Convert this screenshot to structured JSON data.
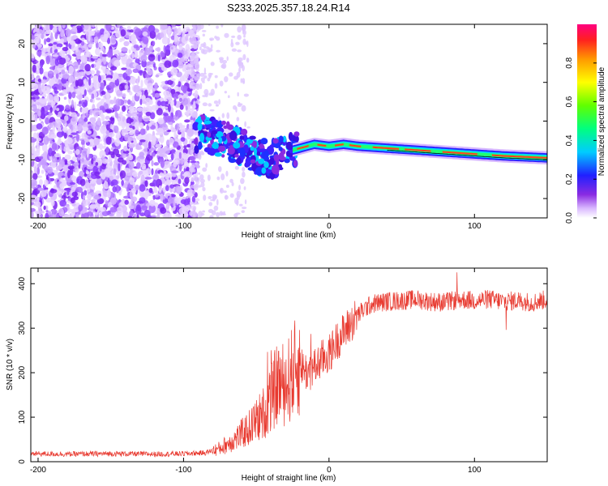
{
  "figure": {
    "title": "S233.2025.357.18.24.R14"
  },
  "chart_data": [
    {
      "type": "heatmap",
      "title": "",
      "xlabel": "Height of straight line (km)",
      "ylabel": "Frequency (Hz)",
      "xlim": [
        -205,
        150
      ],
      "ylim": [
        -25,
        25
      ],
      "xticks": [
        -200,
        -100,
        0,
        100
      ],
      "yticks": [
        -20,
        -10,
        0,
        10,
        20
      ],
      "colorbar": {
        "label": "Normalized spectral amplitude",
        "range": [
          0.0,
          1.0
        ],
        "ticks": [
          0.0,
          0.2,
          0.4,
          0.6,
          0.8
        ]
      },
      "ridge_trace": {
        "description_x_km": [
          -90,
          -80,
          -70,
          -60,
          -50,
          -40,
          -30,
          -20,
          -10,
          0,
          10,
          20,
          40,
          60,
          80,
          100,
          120,
          150
        ],
        "frequency_hz": [
          -3,
          -4,
          -5,
          -7,
          -9,
          -10,
          -8,
          -7,
          -6,
          -6.5,
          -6,
          -6.5,
          -7,
          -7.5,
          -8,
          -8.5,
          -9,
          -9.5
        ]
      }
    },
    {
      "type": "line",
      "title": "",
      "xlabel": "Height of straight line (km)",
      "ylabel": "SNR (10 * v/v)",
      "xlim": [
        -205,
        150
      ],
      "ylim": [
        0,
        435
      ],
      "xticks": [
        -200,
        -100,
        0,
        100
      ],
      "yticks": [
        0,
        100,
        200,
        300,
        400
      ],
      "series": [
        {
          "name": "SNR",
          "color": "#e83a30",
          "x": [
            -205,
            -180,
            -150,
            -120,
            -100,
            -85,
            -75,
            -65,
            -55,
            -45,
            -40,
            -35,
            -30,
            -25,
            -20,
            -15,
            -10,
            -5,
            0,
            5,
            10,
            15,
            20,
            25,
            30,
            40,
            50,
            60,
            70,
            80,
            90,
            100,
            110,
            120,
            130,
            140,
            150
          ],
          "y": [
            18,
            17,
            18,
            17,
            18,
            20,
            30,
            50,
            75,
            110,
            140,
            180,
            170,
            200,
            220,
            200,
            210,
            230,
            240,
            270,
            290,
            310,
            330,
            345,
            355,
            360,
            362,
            365,
            360,
            358,
            365,
            362,
            365,
            360,
            362,
            358,
            365
          ]
        }
      ]
    }
  ]
}
